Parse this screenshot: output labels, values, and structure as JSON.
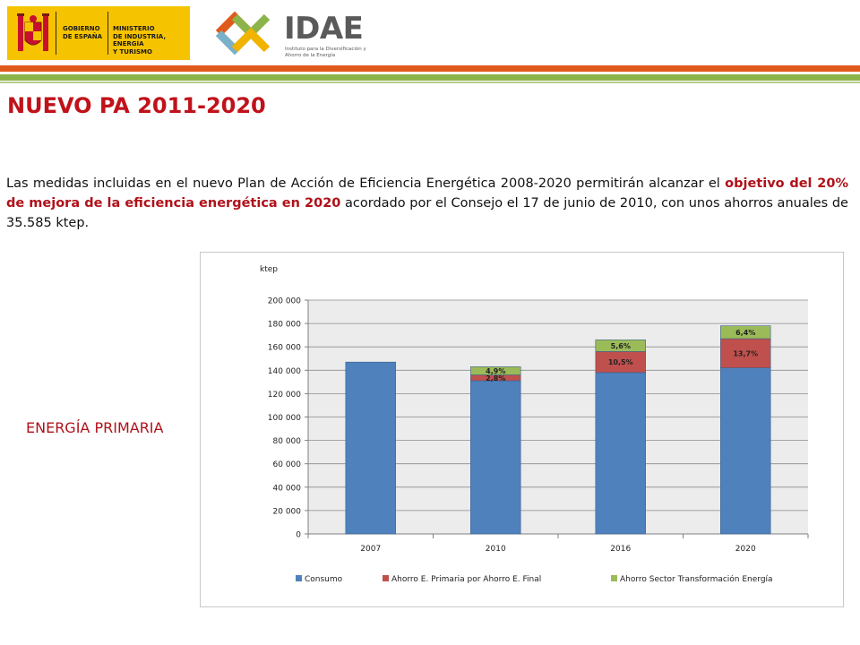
{
  "header": {
    "gov_text_1": "GOBIERNO\nDE ESPAÑA",
    "gov_text_2": "MINISTERIO\nDE INDUSTRIA, ENERGÍA\nY TURISMO",
    "idae_name": "IDAE",
    "idae_subtitle": "Instituto para la Diversificación y Ahorro de la Energía",
    "colors": {
      "gov_yellow": "#f6c300",
      "band_orange": "#e05a1c",
      "band_green": "#8db44a",
      "title_red": "#c0121a"
    }
  },
  "page": {
    "title": "NUEVO PA 2011-2020",
    "intro_part1": "Las medidas incluidas en el nuevo Plan de Acción de Eficiencia Energética 2008-2020 permitirán alcanzar el ",
    "intro_highlight": "objetivo del 20% de mejora de la eficiencia energética en 2020",
    "intro_part2": " acordado por el Consejo el 17 de junio de 2010, con unos ahorros anuales de 35.585 ktep.",
    "side_label": "ENERGÍA PRIMARIA"
  },
  "chart_data": {
    "type": "bar",
    "stacked": true,
    "ylabel": "ktep",
    "ylim": [
      0,
      200000
    ],
    "yticks": [
      0,
      20000,
      40000,
      60000,
      80000,
      100000,
      120000,
      140000,
      160000,
      180000,
      200000
    ],
    "ytick_labels": [
      "0",
      "20 000",
      "40 000",
      "60 000",
      "80 000",
      "100 000",
      "120 000",
      "140 000",
      "160 000",
      "180 000",
      "200 000"
    ],
    "categories": [
      "2007",
      "2010",
      "2016",
      "2020"
    ],
    "series": [
      {
        "name": "Consumo",
        "color": "#4f81bd",
        "values": [
          147000,
          131000,
          138000,
          142000
        ],
        "labels": [
          "",
          "",
          "",
          ""
        ]
      },
      {
        "name": "Ahorro E. Primaria por Ahorro E. Final",
        "color": "#c0504d",
        "values": [
          0,
          5000,
          18000,
          25000
        ],
        "labels": [
          "",
          "2,8%",
          "10,5%",
          "13,7%"
        ]
      },
      {
        "name": "Ahorro Sector Transformación Energía",
        "color": "#9bbb59",
        "values": [
          0,
          7000,
          10000,
          11000
        ],
        "labels": [
          "",
          "4,9%",
          "5,6%",
          "6,4%"
        ]
      }
    ],
    "grid": true,
    "legend_position": "bottom",
    "plot_background": "#ececec"
  }
}
